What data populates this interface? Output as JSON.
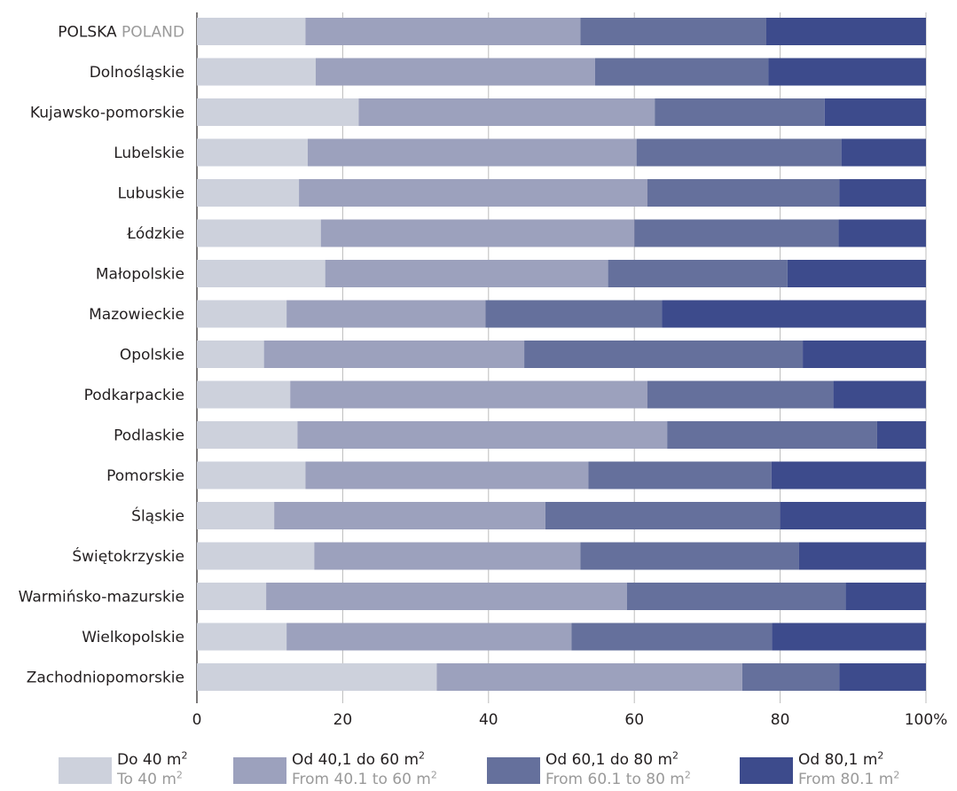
{
  "chart_data": {
    "type": "bar",
    "orientation": "horizontal",
    "stacked": true,
    "categories": [
      {
        "pl": "POLSKA",
        "en": "POLAND"
      },
      {
        "pl": "Dolnośląskie"
      },
      {
        "pl": "Kujawsko-pomorskie"
      },
      {
        "pl": "Lubelskie"
      },
      {
        "pl": "Lubuskie"
      },
      {
        "pl": "Łódzkie"
      },
      {
        "pl": "Małopolskie"
      },
      {
        "pl": "Mazowieckie"
      },
      {
        "pl": "Opolskie"
      },
      {
        "pl": "Podkarpackie"
      },
      {
        "pl": "Podlaskie"
      },
      {
        "pl": "Pomorskie"
      },
      {
        "pl": "Śląskie"
      },
      {
        "pl": "Świętokrzyskie"
      },
      {
        "pl": "Warmińsko-mazurskie"
      },
      {
        "pl": "Wielkopolskie"
      },
      {
        "pl": "Zachodniopomorskie"
      }
    ],
    "series": [
      {
        "name_pl": "Do 40 m",
        "name_en": "To 40 m",
        "sup": "2",
        "color": "#cdd1dc",
        "values": [
          14.9,
          16.3,
          22.2,
          15.2,
          14.0,
          17.0,
          17.6,
          12.3,
          9.2,
          12.8,
          13.8,
          14.9,
          10.6,
          16.1,
          9.5,
          12.3,
          32.9
        ]
      },
      {
        "name_pl": "Od 40,1 do 60 m",
        "name_en": "From 40.1 to 60 m",
        "sup": "2",
        "color": "#9ca1bd",
        "values": [
          37.7,
          38.3,
          40.6,
          45.1,
          47.8,
          43.0,
          38.8,
          27.3,
          35.7,
          49.0,
          50.7,
          38.8,
          37.2,
          36.5,
          49.5,
          39.1,
          41.9
        ]
      },
      {
        "name_pl": "Od 60,1 do 80 m",
        "name_en": "From 60.1 to 80 m",
        "sup": "2",
        "color": "#65709c",
        "values": [
          25.5,
          23.8,
          23.3,
          28.1,
          26.3,
          28.0,
          24.6,
          24.2,
          38.2,
          25.5,
          28.8,
          25.1,
          32.2,
          30.0,
          30.0,
          27.5,
          13.3
        ]
      },
      {
        "name_pl": "Od 80,1 m",
        "name_en": "From 80.1 m",
        "sup": "2",
        "color": "#3d4b8c",
        "values": [
          21.9,
          21.6,
          13.9,
          11.6,
          11.9,
          12.0,
          19.0,
          36.2,
          16.9,
          12.7,
          6.7,
          21.2,
          20.0,
          17.4,
          11.0,
          21.1,
          11.9
        ]
      }
    ],
    "x_ticks": [
      "0",
      "20",
      "40",
      "60",
      "80",
      "100%"
    ],
    "xlim": [
      0,
      100
    ],
    "grid": true,
    "legend_position": "bottom",
    "title": "",
    "xlabel": "",
    "ylabel": "",
    "colors": {
      "axis": "#231f20",
      "grid": "#bcbcbc",
      "label": "#231f20",
      "label_secondary": "#9a9a9a"
    }
  }
}
